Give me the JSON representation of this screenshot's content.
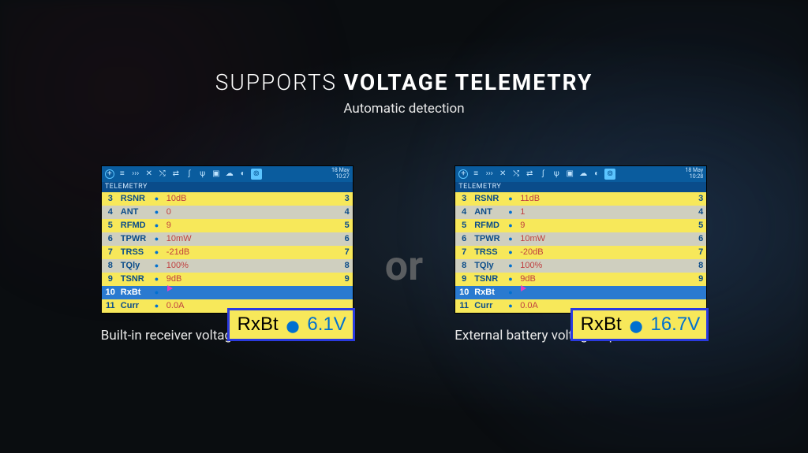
{
  "colors": {
    "bg_dark": "#0a0d10",
    "heading_text": "#ffffff",
    "yellow_row": "#f7e85a",
    "grey_row": "#cfcfbf",
    "blue_row": "#2a7ad0",
    "header_blue": "#0a5c9e",
    "section_blue": "#0a4c8a",
    "row_key": "#0a4c8a",
    "row_val": "#c04040",
    "accent_blue": "#0070d0",
    "callout_border": "#2a3ae0",
    "callout_bg": "#f7e85a",
    "arrow_magenta": "#e040c0",
    "or_grey": "#5a5d60"
  },
  "heading": {
    "prefix": "SUPPORTS ",
    "bold": "VOLTAGE TELEMETRY"
  },
  "subheading": "Automatic detection",
  "or_label": "or",
  "left": {
    "caption": "Built-in receiver voltage",
    "datetime": {
      "date": "18 May",
      "time": "10:27"
    },
    "section": "TELEMETRY",
    "rows": [
      {
        "idx": "3",
        "key": "RSNR",
        "val": "10dB",
        "tail": "3",
        "bg": "yellow"
      },
      {
        "idx": "4",
        "key": "ANT",
        "val": "0",
        "tail": "4",
        "bg": "grey"
      },
      {
        "idx": "5",
        "key": "RFMD",
        "val": "9",
        "tail": "5",
        "bg": "yellow"
      },
      {
        "idx": "6",
        "key": "TPWR",
        "val": "10mW",
        "tail": "6",
        "bg": "grey"
      },
      {
        "idx": "7",
        "key": "TRSS",
        "val": "-21dB",
        "tail": "7",
        "bg": "yellow"
      },
      {
        "idx": "8",
        "key": "TQly",
        "val": "100%",
        "tail": "8",
        "bg": "grey"
      },
      {
        "idx": "9",
        "key": "TSNR",
        "val": "9dB",
        "tail": "9",
        "bg": "yellow"
      },
      {
        "idx": "10",
        "key": "RxBt",
        "val": "",
        "tail": "",
        "bg": "blue",
        "arrow": true
      },
      {
        "idx": "11",
        "key": "Curr",
        "val": "0.0A",
        "tail": "",
        "bg": "yellow"
      }
    ],
    "callout": {
      "name": "RxBt",
      "value": "6.1V",
      "bg": "#f7e85a"
    }
  },
  "right": {
    "caption": "External battery voltage input",
    "datetime": {
      "date": "18 May",
      "time": "10:28"
    },
    "section": "TELEMETRY",
    "rows": [
      {
        "idx": "3",
        "key": "RSNR",
        "val": "11dB",
        "tail": "3",
        "bg": "yellow"
      },
      {
        "idx": "4",
        "key": "ANT",
        "val": "1",
        "tail": "4",
        "bg": "grey"
      },
      {
        "idx": "5",
        "key": "RFMD",
        "val": "9",
        "tail": "5",
        "bg": "yellow"
      },
      {
        "idx": "6",
        "key": "TPWR",
        "val": "10mW",
        "tail": "6",
        "bg": "grey"
      },
      {
        "idx": "7",
        "key": "TRSS",
        "val": "-20dB",
        "tail": "7",
        "bg": "yellow"
      },
      {
        "idx": "8",
        "key": "TQly",
        "val": "100%",
        "tail": "8",
        "bg": "grey"
      },
      {
        "idx": "9",
        "key": "TSNR",
        "val": "9dB",
        "tail": "9",
        "bg": "yellow"
      },
      {
        "idx": "10",
        "key": "RxBt",
        "val": "",
        "tail": "",
        "bg": "blue",
        "arrow": true
      },
      {
        "idx": "11",
        "key": "Curr",
        "val": "0.0A",
        "tail": "",
        "bg": "yellow"
      }
    ],
    "callout": {
      "name": "RxBt",
      "value": "16.7V",
      "bg": "#f7e85a"
    }
  },
  "topbar_icons": [
    "plus-icon",
    "list-icon",
    "signal-icon",
    "tools-icon",
    "route-icon",
    "swap-icon",
    "curve-icon",
    "switch-icon",
    "box-icon",
    "cloud-icon",
    "script-icon",
    "antenna-icon"
  ]
}
